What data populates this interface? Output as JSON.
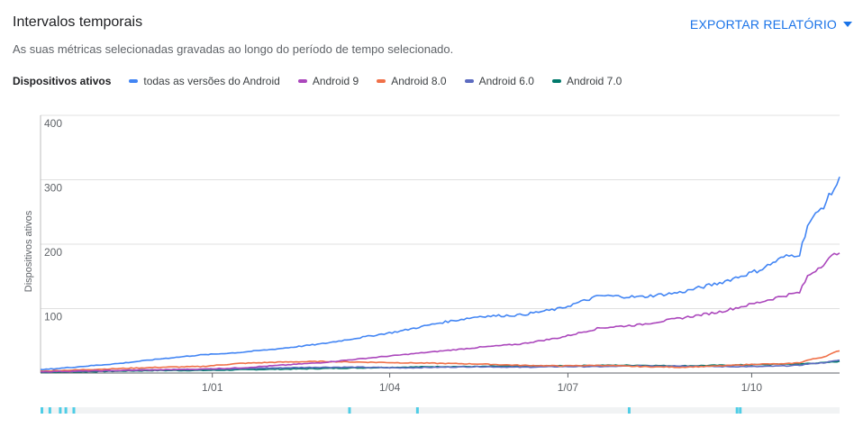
{
  "header": {
    "title": "Intervalos temporais",
    "subtitle": "As suas métricas selecionadas gravadas ao longo do período de tempo selecionado.",
    "export_label": "EXPORTAR RELATÓRIO"
  },
  "legend": {
    "metric_label": "Dispositivos ativos"
  },
  "chart_data": {
    "type": "line",
    "ylabel": "Dispositivos ativos",
    "ylim": [
      0,
      400
    ],
    "yticks": [
      "400",
      "300",
      "200",
      "100"
    ],
    "ytick_values": [
      400,
      300,
      200,
      100
    ],
    "xticks": [
      "1/01",
      "1/04",
      "1/07",
      "1/10"
    ],
    "xtick_positions": [
      0.215,
      0.437,
      0.66,
      0.89
    ],
    "grid": true,
    "legend_placement": "top-left",
    "x": [
      0,
      0.05,
      0.1,
      0.15,
      0.2,
      0.25,
      0.3,
      0.35,
      0.4,
      0.45,
      0.5,
      0.55,
      0.6,
      0.65,
      0.7,
      0.75,
      0.8,
      0.85,
      0.9,
      0.93,
      0.95,
      0.96,
      0.98,
      1.0
    ],
    "series": [
      {
        "name": "todas as versões do Android",
        "color": "#4285f4",
        "values": [
          5,
          10,
          15,
          22,
          28,
          32,
          38,
          45,
          55,
          65,
          78,
          88,
          90,
          100,
          120,
          118,
          125,
          140,
          160,
          180,
          185,
          230,
          260,
          300
        ]
      },
      {
        "name": "Android 9",
        "color": "#ab47bc",
        "values": [
          2,
          3,
          4,
          5,
          6,
          8,
          12,
          16,
          22,
          28,
          34,
          40,
          45,
          55,
          70,
          75,
          85,
          95,
          110,
          120,
          125,
          150,
          170,
          190
        ]
      },
      {
        "name": "Android 8.0",
        "color": "#f07048",
        "values": [
          3,
          5,
          7,
          9,
          10,
          15,
          17,
          18,
          17,
          16,
          15,
          14,
          12,
          11,
          12,
          10,
          9,
          11,
          14,
          14,
          16,
          20,
          25,
          35
        ]
      },
      {
        "name": "Android 6.0",
        "color": "#5c6bc0",
        "values": [
          2,
          3,
          4,
          5,
          6,
          7,
          8,
          9,
          9,
          8,
          9,
          10,
          9,
          10,
          10,
          11,
          11,
          10,
          10,
          11,
          12,
          14,
          16,
          20
        ]
      },
      {
        "name": "Android 7.0",
        "color": "#00796b",
        "values": [
          1,
          2,
          3,
          4,
          4,
          5,
          6,
          7,
          8,
          9,
          10,
          10,
          11,
          11,
          12,
          12,
          11,
          12,
          13,
          14,
          14,
          15,
          16,
          18
        ]
      }
    ],
    "annotation_markers": [
      0.0,
      0.01,
      0.023,
      0.03,
      0.04,
      0.385,
      0.47,
      0.735,
      0.87,
      0.874
    ]
  }
}
